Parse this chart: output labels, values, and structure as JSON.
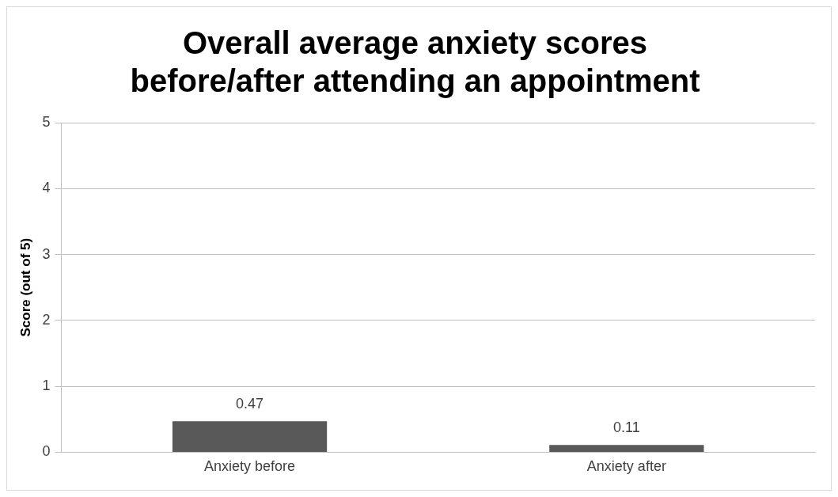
{
  "chart_data": {
    "type": "bar",
    "title": "Overall average anxiety scores\nbefore/after attending an appointment",
    "ylabel": "Score (out of 5)",
    "categories": [
      "Anxiety before",
      "Anxiety after"
    ],
    "values": [
      0.47,
      0.11
    ],
    "color": "#595959",
    "ylim": [
      0,
      5
    ],
    "yticks": [
      0,
      1,
      2,
      3,
      4,
      5
    ],
    "grid": "y",
    "legend": false,
    "data_labels": true
  }
}
